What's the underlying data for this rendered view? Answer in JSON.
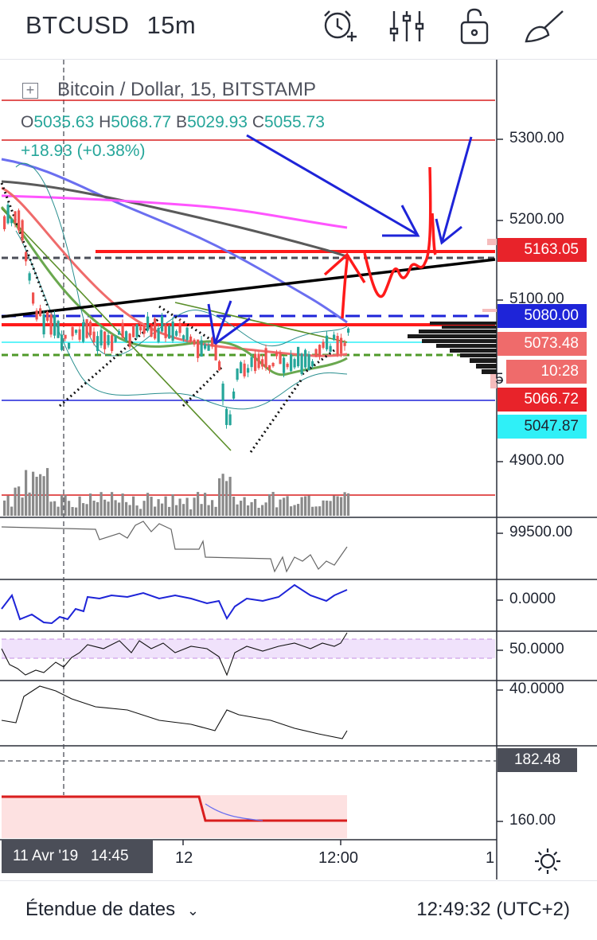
{
  "header": {
    "symbol": "BTCUSD",
    "interval": "15m",
    "tools": [
      {
        "name": "alarm-add-icon"
      },
      {
        "name": "indicator-settings-icon"
      },
      {
        "name": "lock-icon"
      },
      {
        "name": "drawing-tools-icon"
      }
    ]
  },
  "legend": {
    "title": "Bitcoin / Dollar, 15, BITSTAMP",
    "open_label": "O",
    "open": "5035.63",
    "high_label": "H",
    "high": "5068.77",
    "low_label": "B",
    "low": "5029.93",
    "close_label": "C",
    "close": "5055.73",
    "change": "+18.93 (+0.38%)"
  },
  "price_axis": {
    "ticks": [
      "5300.00",
      "5200.00",
      "5100.00",
      "4900.00"
    ],
    "tags": [
      {
        "value": "5163.05",
        "color": "#e8232a"
      },
      {
        "value": "5080.00",
        "color": "#1e24d8"
      },
      {
        "value": "5073.48",
        "color": "#ef6b6b"
      },
      {
        "value": "10:28",
        "color": "#ef6b6b"
      },
      {
        "value": "5066.72",
        "color": "#e8232a"
      },
      {
        "value": "5047.87",
        "color": "#2ff0f7"
      }
    ],
    "partial_tick": "5"
  },
  "indicator_axes": [
    {
      "value": "99500.00"
    },
    {
      "value": "0.0000"
    },
    {
      "value": "50.0000"
    },
    {
      "value": "40.0000"
    },
    {
      "value": "182.48",
      "tagged": true
    },
    {
      "value": "160.00"
    }
  ],
  "time_axis": {
    "cursor_label": "11 Avr '19   14:45",
    "labels": [
      "12",
      "12:00",
      "1"
    ]
  },
  "footer": {
    "date_range": "Étendue de dates",
    "clock": "12:49:32 (UTC+2)"
  },
  "colors": {
    "up": "#26a69a",
    "down": "#ef5350",
    "annotation_blue": "#1e24d8",
    "annotation_red": "#ff1a1a"
  }
}
